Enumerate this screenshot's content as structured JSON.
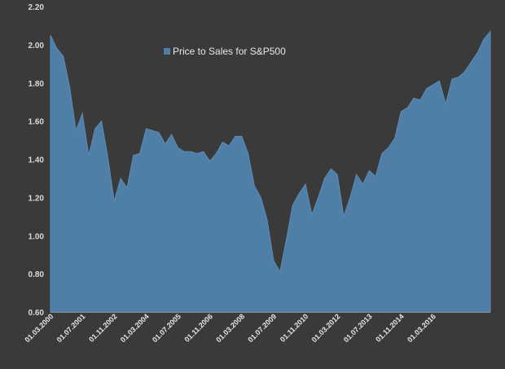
{
  "chart_data": {
    "type": "area",
    "title": "",
    "xlabel": "",
    "ylabel": "",
    "ylim": [
      0.6,
      2.2
    ],
    "yticks": [
      "0.60",
      "0.80",
      "1.00",
      "1.20",
      "1.40",
      "1.60",
      "1.80",
      "2.00",
      "2.20"
    ],
    "xtick_labels": [
      {
        "label": "01.03.2000",
        "index": 0
      },
      {
        "label": "01.07.2001",
        "index": 5
      },
      {
        "label": "01.11.2002",
        "index": 10
      },
      {
        "label": "01.03.2004",
        "index": 15
      },
      {
        "label": "01.07.2005",
        "index": 20
      },
      {
        "label": "01.11.2006",
        "index": 25
      },
      {
        "label": "01.03.2008",
        "index": 30
      },
      {
        "label": "01.07.2009",
        "index": 35
      },
      {
        "label": "01.11.2010",
        "index": 40
      },
      {
        "label": "01.03.2012",
        "index": 45
      },
      {
        "label": "01.07.2013",
        "index": 50
      },
      {
        "label": "01.11.2014",
        "index": 55
      },
      {
        "label": "01.03.2016",
        "index": 60
      }
    ],
    "grid": false,
    "legend_position": "top",
    "series": [
      {
        "name": "Price to Sales for S&P500",
        "color": "#4f7ea6",
        "values": [
          2.05,
          1.98,
          1.94,
          1.78,
          1.55,
          1.64,
          1.42,
          1.56,
          1.6,
          1.41,
          1.18,
          1.3,
          1.25,
          1.42,
          1.43,
          1.56,
          1.55,
          1.54,
          1.48,
          1.53,
          1.46,
          1.44,
          1.44,
          1.43,
          1.44,
          1.39,
          1.43,
          1.49,
          1.47,
          1.52,
          1.52,
          1.43,
          1.26,
          1.2,
          1.08,
          0.87,
          0.81,
          0.98,
          1.16,
          1.22,
          1.27,
          1.11,
          1.2,
          1.3,
          1.35,
          1.32,
          1.1,
          1.2,
          1.32,
          1.27,
          1.34,
          1.31,
          1.43,
          1.46,
          1.51,
          1.65,
          1.67,
          1.72,
          1.71,
          1.77,
          1.79,
          1.81,
          1.69,
          1.82,
          1.83,
          1.86,
          1.91,
          1.96,
          2.03,
          2.07
        ]
      }
    ]
  }
}
